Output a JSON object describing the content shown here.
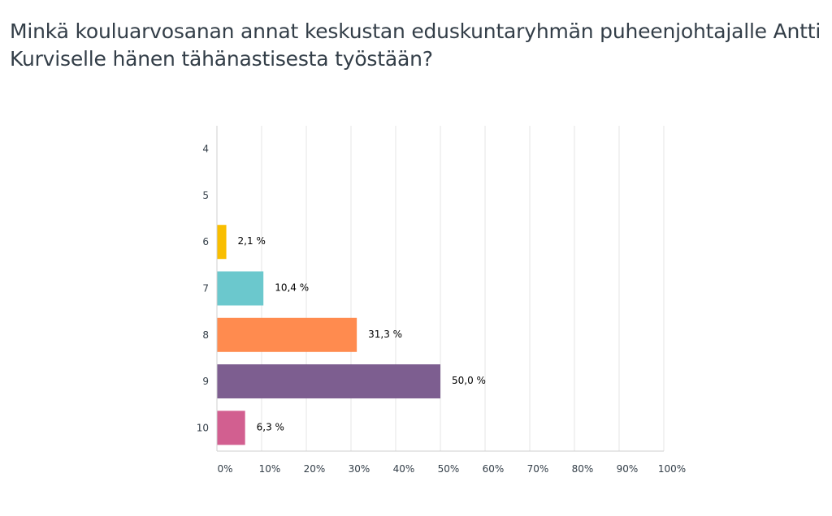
{
  "title": "Minkä kouluarvosanan annat keskustan eduskuntaryhmän puheenjohtajalle Antti Kurviselle hänen tähänastisesta työstään?",
  "chart_data": {
    "type": "bar",
    "orientation": "horizontal",
    "title": "Minkä kouluarvosanan annat keskustan eduskuntaryhmän puheenjohtajalle Antti Kurviselle hänen tähänastisesta työstään?",
    "categories": [
      "4",
      "5",
      "6",
      "7",
      "8",
      "9",
      "10"
    ],
    "values": [
      0,
      0,
      2.1,
      10.4,
      31.3,
      50.0,
      6.3
    ],
    "data_labels": [
      "",
      "",
      "2,1 %",
      "10,4 %",
      "31,3 %",
      "50,0 %",
      "6,3 %"
    ],
    "colors": [
      "#f9be00",
      "#f9be00",
      "#f9be00",
      "#6bc8cd",
      "#ff8b4f",
      "#7d5e90",
      "#d25f90"
    ],
    "xlim": [
      0,
      100
    ],
    "xticks": [
      0,
      10,
      20,
      30,
      40,
      50,
      60,
      70,
      80,
      90,
      100
    ],
    "xtick_labels": [
      "0%",
      "10%",
      "20%",
      "30%",
      "40%",
      "50%",
      "60%",
      "70%",
      "80%",
      "90%",
      "100%"
    ],
    "grid": true,
    "xlabel": "",
    "ylabel": ""
  }
}
